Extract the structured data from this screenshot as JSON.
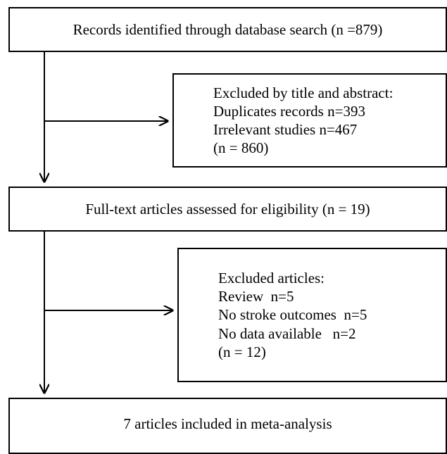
{
  "flowchart": {
    "identified": {
      "text": "Records identified through database search (n =879)"
    },
    "excluded_title_abstract": {
      "lines": [
        "Excluded by title and abstract:",
        "Duplicates records n=393",
        "Irrelevant studies n=467",
        "(n = 860)"
      ]
    },
    "fulltext": {
      "text": "Full-text articles assessed for eligibility (n = 19)"
    },
    "excluded_articles": {
      "lines": [
        "Excluded articles:",
        "Review  n=5",
        "No stroke outcomes  n=5",
        "No data available   n=2",
        "(n = 12)"
      ]
    },
    "included": {
      "text": "7 articles included in meta-analysis"
    }
  }
}
